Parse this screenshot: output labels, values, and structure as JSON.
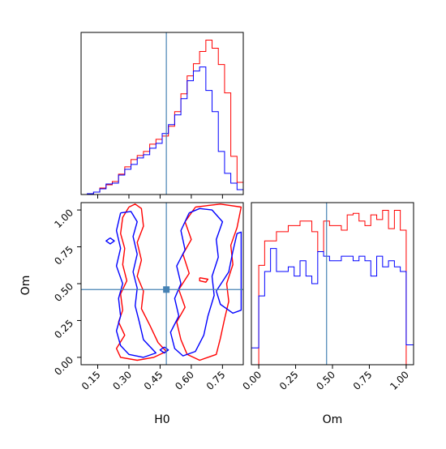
{
  "chart_data": [
    {
      "type": "histogram",
      "panel": "H0 marginal",
      "x_range": [
        0.07,
        0.85
      ],
      "show_x_ticks": false,
      "truth_line_x": 0.48,
      "line_color": "#4682b4",
      "series": [
        {
          "color": "#ff0000",
          "bin_edges": [
            0.07,
            0.1,
            0.13,
            0.16,
            0.19,
            0.22,
            0.25,
            0.28,
            0.31,
            0.34,
            0.37,
            0.4,
            0.43,
            0.46,
            0.49,
            0.52,
            0.55,
            0.58,
            0.61,
            0.64,
            0.67,
            0.7,
            0.73,
            0.76,
            0.79,
            0.82,
            0.85
          ],
          "values": [
            0,
            1,
            3,
            8,
            12,
            16,
            25,
            34,
            43,
            48,
            53,
            62,
            68,
            72,
            84,
            102,
            124,
            146,
            161,
            176,
            190,
            180,
            160,
            125,
            47,
            15
          ]
        },
        {
          "color": "#0000ff",
          "bin_edges": [
            0.07,
            0.1,
            0.13,
            0.16,
            0.19,
            0.22,
            0.25,
            0.28,
            0.31,
            0.34,
            0.37,
            0.4,
            0.43,
            0.46,
            0.49,
            0.52,
            0.55,
            0.58,
            0.61,
            0.64,
            0.67,
            0.7,
            0.73,
            0.76,
            0.79,
            0.82,
            0.85
          ],
          "values": [
            0,
            1,
            3,
            7,
            13,
            14,
            24,
            31,
            37,
            45,
            49,
            57,
            63,
            75,
            86,
            98,
            118,
            140,
            152,
            157,
            128,
            102,
            53,
            26,
            14,
            6
          ]
        }
      ]
    },
    {
      "type": "contour",
      "panel": "H0 vs Om",
      "xlabel": "H0",
      "ylabel": "Om",
      "x_range": [
        0.07,
        0.85
      ],
      "y_range": [
        -0.05,
        1.05
      ],
      "x_ticks": [
        "0.15",
        "0.30",
        "0.45",
        "0.60",
        "0.75"
      ],
      "y_ticks": [
        "0.00",
        "0.25",
        "0.50",
        "0.75",
        "1.00"
      ],
      "truth_point": [
        0.48,
        0.46
      ],
      "line_color": "#4682b4",
      "series": [
        {
          "color": "#ff0000",
          "contours": [
            [
              [
                0.3,
                1.02
              ],
              [
                0.27,
                0.95
              ],
              [
                0.26,
                0.84
              ],
              [
                0.28,
                0.74
              ],
              [
                0.27,
                0.63
              ],
              [
                0.29,
                0.52
              ],
              [
                0.26,
                0.43
              ],
              [
                0.27,
                0.32
              ],
              [
                0.25,
                0.24
              ],
              [
                0.28,
                0.15
              ],
              [
                0.24,
                0.06
              ],
              [
                0.26,
                0.0
              ],
              [
                0.34,
                -0.02
              ],
              [
                0.42,
                0.0
              ],
              [
                0.48,
                0.04
              ],
              [
                0.44,
                0.1
              ],
              [
                0.4,
                0.22
              ],
              [
                0.36,
                0.33
              ],
              [
                0.37,
                0.45
              ],
              [
                0.34,
                0.55
              ],
              [
                0.36,
                0.66
              ],
              [
                0.34,
                0.78
              ],
              [
                0.37,
                0.89
              ],
              [
                0.36,
                1.01
              ],
              [
                0.33,
                1.04
              ],
              [
                0.3,
                1.02
              ]
            ],
            [
              [
                0.62,
                1.02
              ],
              [
                0.57,
                0.92
              ],
              [
                0.6,
                0.8
              ],
              [
                0.56,
                0.7
              ],
              [
                0.59,
                0.57
              ],
              [
                0.54,
                0.46
              ],
              [
                0.57,
                0.34
              ],
              [
                0.53,
                0.24
              ],
              [
                0.55,
                0.12
              ],
              [
                0.58,
                0.02
              ],
              [
                0.64,
                -0.02
              ],
              [
                0.72,
                0.02
              ],
              [
                0.74,
                0.13
              ],
              [
                0.76,
                0.26
              ],
              [
                0.78,
                0.38
              ],
              [
                0.77,
                0.5
              ],
              [
                0.8,
                0.63
              ],
              [
                0.79,
                0.76
              ],
              [
                0.82,
                0.88
              ],
              [
                0.84,
                1.02
              ],
              [
                0.74,
                1.04
              ],
              [
                0.68,
                1.03
              ],
              [
                0.62,
                1.02
              ]
            ],
            [
              [
                0.64,
                0.54
              ],
              [
                0.68,
                0.53
              ],
              [
                0.67,
                0.51
              ],
              [
                0.64,
                0.52
              ],
              [
                0.64,
                0.54
              ]
            ]
          ]
        },
        {
          "color": "#0000ff",
          "contours": [
            [
              [
                0.26,
                0.98
              ],
              [
                0.24,
                0.86
              ],
              [
                0.26,
                0.74
              ],
              [
                0.24,
                0.62
              ],
              [
                0.27,
                0.5
              ],
              [
                0.25,
                0.4
              ],
              [
                0.26,
                0.28
              ],
              [
                0.24,
                0.18
              ],
              [
                0.26,
                0.08
              ],
              [
                0.3,
                0.02
              ],
              [
                0.37,
                0.0
              ],
              [
                0.43,
                0.03
              ],
              [
                0.37,
                0.12
              ],
              [
                0.35,
                0.24
              ],
              [
                0.33,
                0.35
              ],
              [
                0.34,
                0.47
              ],
              [
                0.32,
                0.58
              ],
              [
                0.34,
                0.7
              ],
              [
                0.32,
                0.82
              ],
              [
                0.34,
                0.92
              ],
              [
                0.31,
                0.99
              ],
              [
                0.26,
                0.98
              ]
            ],
            [
              [
                0.59,
                0.98
              ],
              [
                0.55,
                0.86
              ],
              [
                0.57,
                0.73
              ],
              [
                0.53,
                0.62
              ],
              [
                0.55,
                0.5
              ],
              [
                0.52,
                0.4
              ],
              [
                0.54,
                0.28
              ],
              [
                0.5,
                0.17
              ],
              [
                0.52,
                0.06
              ],
              [
                0.56,
                0.01
              ],
              [
                0.62,
                0.04
              ],
              [
                0.66,
                0.15
              ],
              [
                0.68,
                0.28
              ],
              [
                0.71,
                0.42
              ],
              [
                0.7,
                0.55
              ],
              [
                0.73,
                0.68
              ],
              [
                0.72,
                0.8
              ],
              [
                0.75,
                0.92
              ],
              [
                0.7,
                1.0
              ],
              [
                0.64,
                1.01
              ],
              [
                0.59,
                0.98
              ]
            ],
            [
              [
                0.72,
                0.45
              ],
              [
                0.78,
                0.58
              ],
              [
                0.8,
                0.72
              ],
              [
                0.82,
                0.84
              ],
              [
                0.84,
                0.85
              ],
              [
                0.84,
                0.32
              ],
              [
                0.8,
                0.3
              ],
              [
                0.74,
                0.36
              ],
              [
                0.72,
                0.45
              ]
            ],
            [
              [
                0.21,
                0.81
              ],
              [
                0.23,
                0.79
              ],
              [
                0.21,
                0.77
              ],
              [
                0.19,
                0.79
              ],
              [
                0.21,
                0.81
              ]
            ],
            [
              [
                0.47,
                0.07
              ],
              [
                0.49,
                0.05
              ],
              [
                0.47,
                0.03
              ],
              [
                0.45,
                0.05
              ],
              [
                0.47,
                0.07
              ]
            ]
          ]
        }
      ]
    },
    {
      "type": "histogram",
      "panel": "Om marginal",
      "xlabel": "Om",
      "x_range": [
        -0.05,
        1.05
      ],
      "x_ticks": [
        "0.00",
        "0.25",
        "0.50",
        "0.75",
        "1.00"
      ],
      "truth_line_x": 0.46,
      "line_color": "#4682b4",
      "series": [
        {
          "color": "#ff0000",
          "bin_edges": [
            0.0,
            0.04,
            0.08,
            0.12,
            0.16,
            0.2,
            0.24,
            0.28,
            0.32,
            0.36,
            0.4,
            0.44,
            0.48,
            0.52,
            0.56,
            0.6,
            0.64,
            0.68,
            0.72,
            0.76,
            0.8,
            0.84,
            0.88,
            0.92,
            0.96,
            1.0
          ],
          "values": [
            65,
            81,
            81,
            87,
            87,
            91,
            91,
            94,
            94,
            87,
            74,
            94,
            91,
            91,
            88,
            98,
            99,
            94,
            91,
            98,
            95,
            101,
            89,
            101,
            88
          ]
        },
        {
          "color": "#0000ff",
          "bin_edges": [
            -0.05,
            0.0,
            0.04,
            0.08,
            0.12,
            0.16,
            0.2,
            0.24,
            0.28,
            0.32,
            0.36,
            0.4,
            0.44,
            0.48,
            0.52,
            0.56,
            0.6,
            0.64,
            0.68,
            0.72,
            0.76,
            0.8,
            0.84,
            0.88,
            0.92,
            0.96,
            1.0,
            1.05
          ],
          "values": [
            11,
            45,
            61,
            76,
            61,
            61,
            64,
            58,
            68,
            58,
            53,
            74,
            71,
            68,
            68,
            71,
            71,
            68,
            71,
            68,
            58,
            71,
            64,
            68,
            64,
            61,
            13
          ]
        }
      ]
    }
  ]
}
